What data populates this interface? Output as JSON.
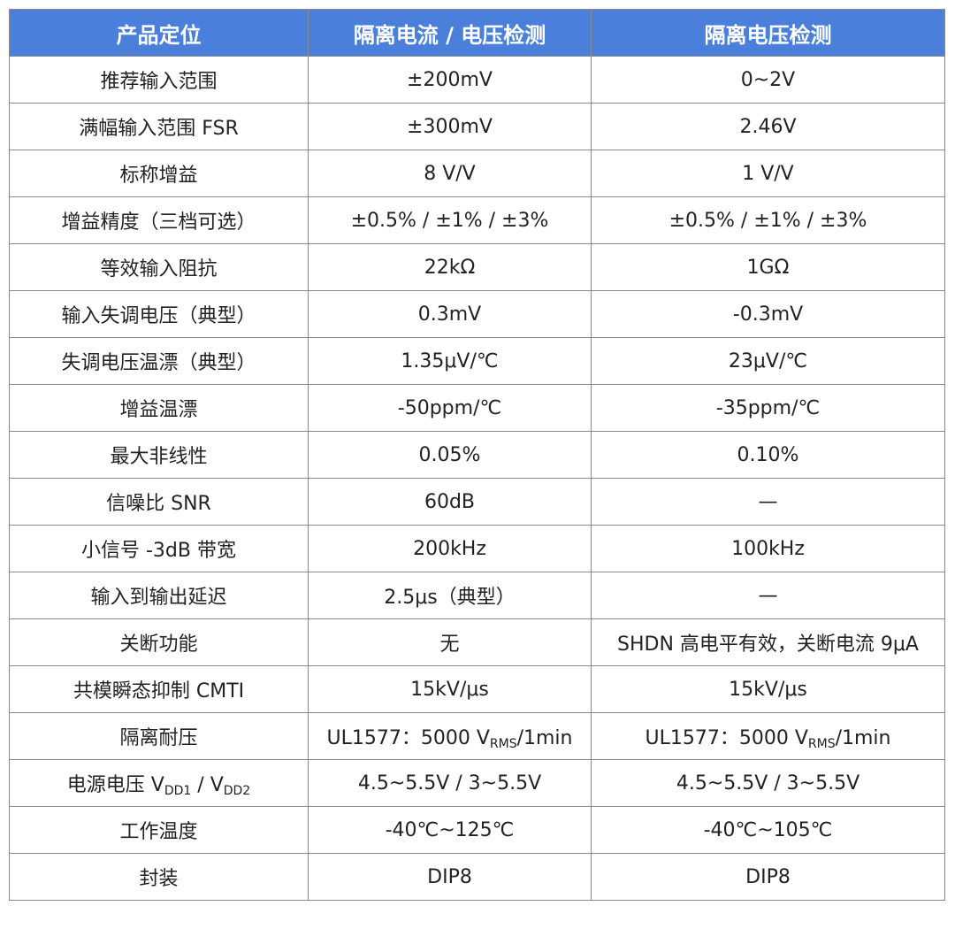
{
  "table": {
    "header": [
      "产品定位",
      "隔离电流 / 电压检测",
      "隔离电压检测"
    ],
    "rows": [
      [
        "推荐输入范围",
        "±200mV",
        "0~2V"
      ],
      [
        "满幅输入范围 FSR",
        "±300mV",
        "2.46V"
      ],
      [
        "标称增益",
        "8 V/V",
        "1 V/V"
      ],
      [
        "增益精度（三档可选）",
        "±0.5% / ±1% / ±3%",
        "±0.5% / ±1% / ±3%"
      ],
      [
        "等效输入阻抗",
        "22kΩ",
        "1GΩ"
      ],
      [
        "输入失调电压（典型）",
        "0.3mV",
        "-0.3mV"
      ],
      [
        "失调电压温漂（典型）",
        "1.35μV/℃",
        "23μV/℃"
      ],
      [
        "增益温漂",
        "-50ppm/℃",
        "-35ppm/℃"
      ],
      [
        "最大非线性",
        "0.05%",
        "0.10%"
      ],
      [
        "信噪比 SNR",
        "60dB",
        "—"
      ],
      [
        "小信号 -3dB 带宽",
        "200kHz",
        "100kHz"
      ],
      [
        "输入到输出延迟",
        "2.5μs（典型）",
        "—"
      ],
      [
        "关断功能",
        "无",
        "SHDN 高电平有效，关断电流 9μA"
      ],
      [
        "共模瞬态抑制 CMTI",
        "15kV/μs",
        "15kV/μs"
      ],
      [
        "隔离耐压",
        {
          "segments": [
            {
              "t": "UL1577：5000 V"
            },
            {
              "sub": "RMS"
            },
            {
              "t": "/1min"
            }
          ]
        },
        {
          "segments": [
            {
              "t": "UL1577：5000 V"
            },
            {
              "sub": "RMS"
            },
            {
              "t": "/1min"
            }
          ]
        }
      ],
      [
        {
          "segments": [
            {
              "t": "电源电压 V"
            },
            {
              "sub": "DD1"
            },
            {
              "t": " / V"
            },
            {
              "sub": "DD2"
            }
          ]
        },
        "4.5~5.5V / 3~5.5V",
        "4.5~5.5V / 3~5.5V"
      ],
      [
        "工作温度",
        "-40℃~125℃",
        "-40℃~105℃"
      ],
      [
        "封装",
        "DIP8",
        "DIP8"
      ]
    ]
  }
}
